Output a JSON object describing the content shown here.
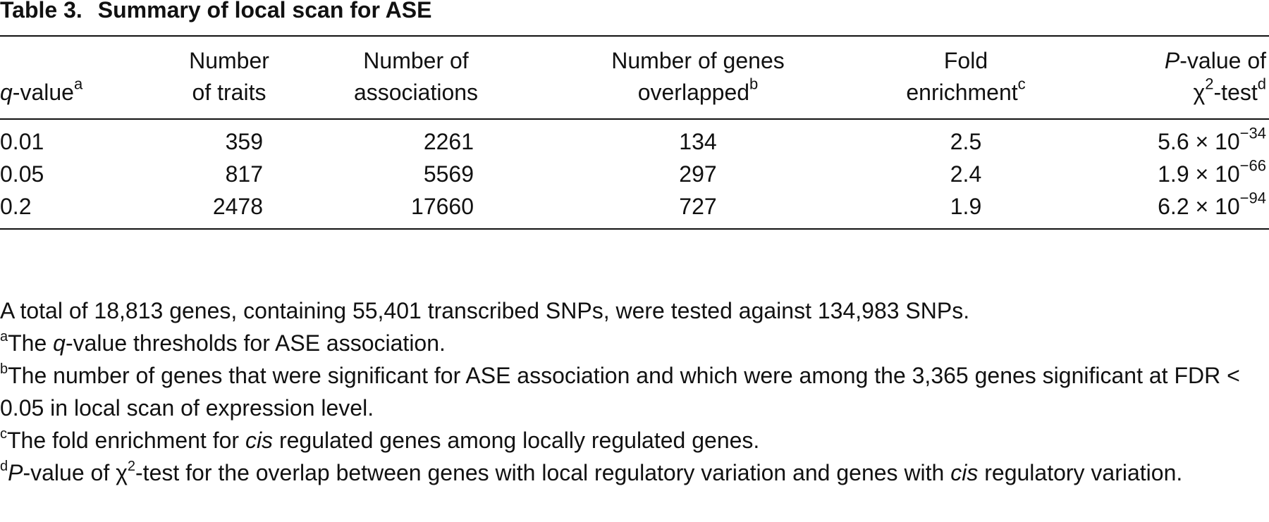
{
  "title": {
    "label": "Table 3.",
    "text": "Summary of local scan for ASE"
  },
  "table": {
    "columns": [
      [
        [
          "q",
          "-value",
          "a"
        ]
      ],
      [
        [
          "Number"
        ],
        [
          "of traits"
        ]
      ],
      [
        [
          "Number of"
        ],
        [
          "associations"
        ]
      ],
      [
        [
          "Number of genes"
        ],
        [
          "overlapped",
          "b"
        ]
      ],
      [
        [
          "Fold"
        ],
        [
          "enrichment",
          "c"
        ]
      ],
      [
        [
          "P",
          "-value of"
        ],
        [
          "χ",
          "2",
          "-test",
          "d"
        ]
      ]
    ],
    "rows": [
      [
        0.01,
        359,
        2261,
        134,
        2.5,
        [
          "5.6 × 10",
          "−34"
        ]
      ],
      [
        0.05,
        817,
        5569,
        297,
        2.4,
        [
          "1.9 × 10",
          "−66"
        ]
      ],
      [
        0.2,
        2478,
        17660,
        727,
        1.9,
        [
          "6.2 × 10",
          "−94"
        ]
      ]
    ]
  },
  "footnotes": {
    "note": "A total of 18,813 genes, containing 55,401 transcribed SNPs, were tested against 134,983 SNPs.",
    "a": [
      "a",
      "The ",
      "q",
      "-value thresholds for ASE association."
    ],
    "b": [
      "b",
      "The number of genes that were significant for ASE association and which were among the 3,365 genes significant at FDR < 0.05 in local scan of expression level."
    ],
    "c": [
      "c",
      "The fold enrichment for ",
      "cis",
      " regulated genes among locally regulated genes."
    ],
    "d": [
      "d",
      "P",
      "-value of ",
      "χ",
      "2",
      "-test for the overlap between genes with local regulatory variation and genes with ",
      "cis",
      " regulatory variation."
    ]
  }
}
